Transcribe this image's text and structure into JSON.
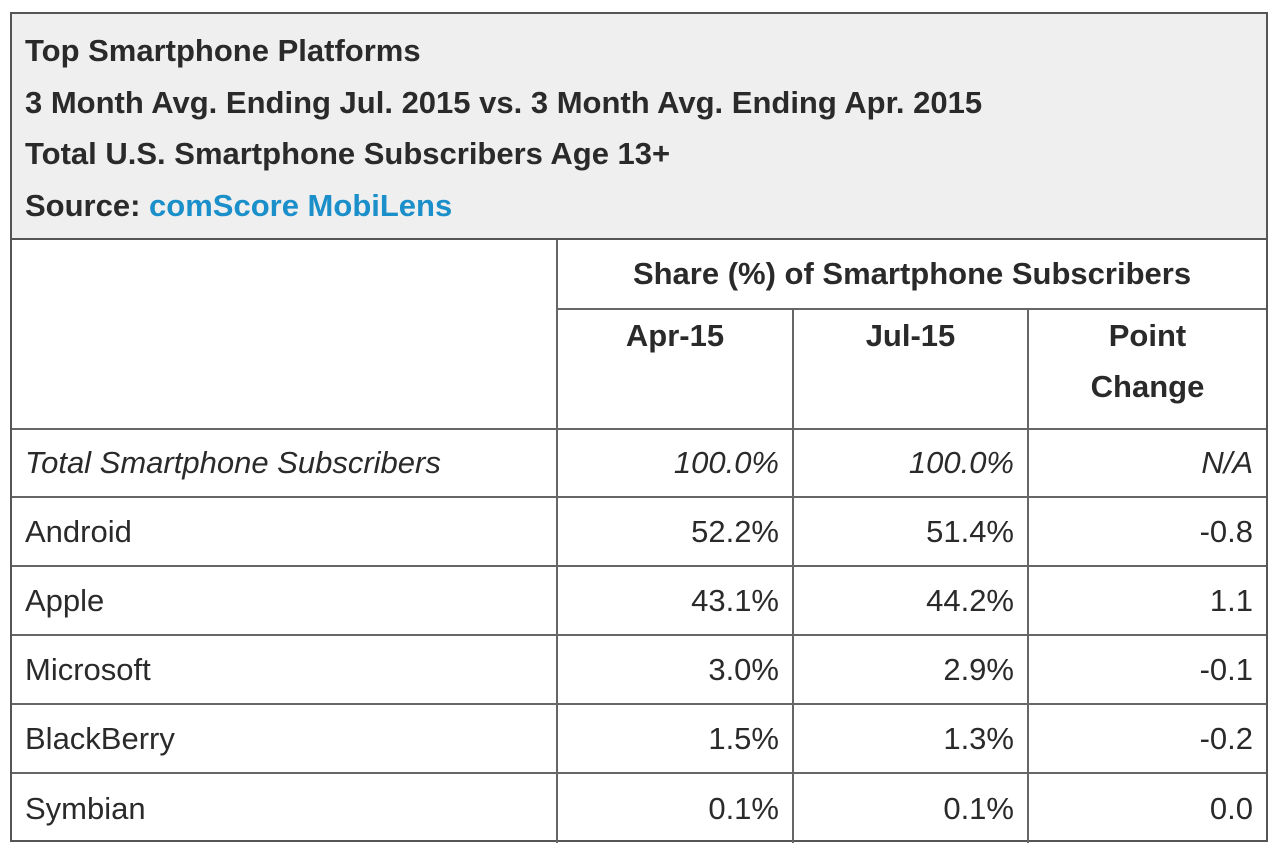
{
  "title_block": {
    "title": "Top Smartphone Platforms",
    "period": "3 Month Avg. Ending Jul. 2015 vs. 3 Month Avg. Ending Apr. 2015",
    "audience": "Total U.S. Smartphone Subscribers Age 13+",
    "source_label": "Source:",
    "source_link": "comScore MobiLens"
  },
  "chart_data": {
    "type": "table",
    "title": "Top Smartphone Platforms",
    "group_header": "Share (%) of Smartphone Subscribers",
    "columns": [
      "Apr-15",
      "Jul-15",
      "Point Change"
    ],
    "rows": [
      {
        "label": "Total Smartphone Subscribers",
        "apr": "100.0%",
        "jul": "100.0%",
        "change": "N/A"
      },
      {
        "label": "Android",
        "apr": "52.2%",
        "jul": "51.4%",
        "change": "-0.8"
      },
      {
        "label": "Apple",
        "apr": "43.1%",
        "jul": "44.2%",
        "change": "1.1"
      },
      {
        "label": "Microsoft",
        "apr": "3.0%",
        "jul": "2.9%",
        "change": "-0.1"
      },
      {
        "label": "BlackBerry",
        "apr": "1.5%",
        "jul": "1.3%",
        "change": "-0.2"
      },
      {
        "label": "Symbian",
        "apr": "0.1%",
        "jul": "0.1%",
        "change": "0.0"
      }
    ]
  },
  "colors": {
    "title_background": "#efefef",
    "link": "#1a8fc9",
    "border": "#555555"
  }
}
